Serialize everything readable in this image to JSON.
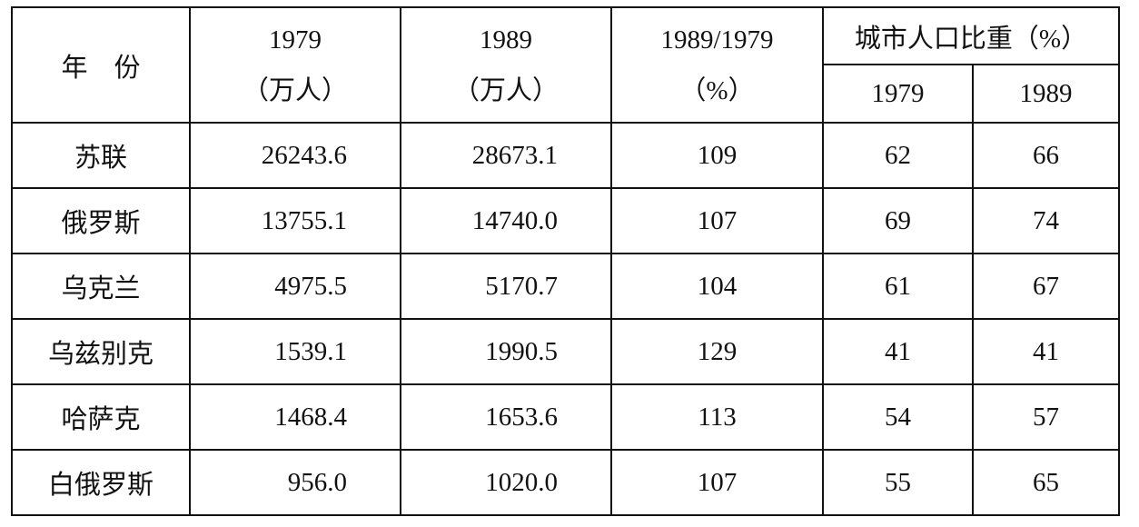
{
  "table": {
    "header": {
      "region": "年　份",
      "columns": [
        [
          "1979",
          "（万人）"
        ],
        [
          "1989",
          "（万人）"
        ],
        [
          "1989/1979",
          "（%）"
        ]
      ],
      "group": "城市人口比重（%）",
      "sub": [
        "1979",
        "1989"
      ]
    },
    "rows": [
      [
        "苏联",
        "26243.6",
        "28673.1",
        "109",
        "62",
        "66"
      ],
      [
        "俄罗斯",
        "13755.1",
        "14740.0",
        "107",
        "69",
        "74"
      ],
      [
        "乌克兰",
        "4975.5",
        "5170.7",
        "104",
        "61",
        "67"
      ],
      [
        "乌兹别克",
        "1539.1",
        "1990.5",
        "129",
        "41",
        "41"
      ],
      [
        "哈萨克",
        "1468.4",
        "1653.6",
        "113",
        "54",
        "57"
      ],
      [
        "白俄罗斯",
        "956.0",
        "1020.0",
        "107",
        "55",
        "65"
      ]
    ]
  }
}
